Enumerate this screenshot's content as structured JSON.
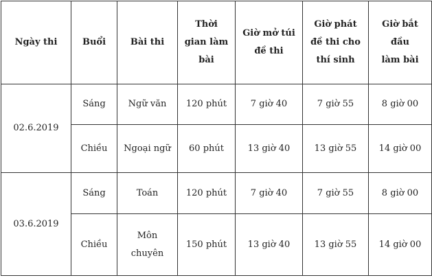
{
  "headers": [
    "Ngày thi",
    "Buổi",
    "Bài thi",
    "Thời gian làm bài",
    "Giờ mở túi đề thi",
    "Giờ phát đề thi cho thí sinh",
    "Giờ bắt đầu làm bài"
  ],
  "header_lines": {
    "h3": [
      "Thời",
      "gian làm",
      "bài"
    ],
    "h4": [
      "Giờ mở túi",
      "đề thi"
    ],
    "h5": [
      "Giờ phát",
      "đề thi cho",
      "thí sinh"
    ],
    "h6": [
      "Giờ bắt đầu",
      "làm bài"
    ]
  },
  "rows": [
    {
      "date": "02.6.2019",
      "sessions": [
        {
          "session": "Sáng",
          "subject": "Ngữ văn",
          "duration": "120 phút",
          "open": "7 giờ 40",
          "distribute": "7 giờ 55",
          "start": "8 giờ 00"
        },
        {
          "session": "Chiều",
          "subject": "Ngoại ngữ",
          "duration": "60 phút",
          "open": "13 giờ 40",
          "distribute": "13 giờ 55",
          "start": "14 giờ 00"
        }
      ]
    },
    {
      "date": "03.6.2019",
      "sessions": [
        {
          "session": "Sáng",
          "subject": "Toán",
          "duration": "120 phút",
          "open": "7 giờ 40",
          "distribute": "7 giờ 55",
          "start": "8 giờ 00"
        },
        {
          "session": "Chiều",
          "subject": "Môn chuyên",
          "subject_lines": [
            "Môn",
            "chuyên"
          ],
          "duration": "150 phút",
          "open": "13 giờ 40",
          "distribute": "13 giờ 55",
          "start": "14 giờ 00"
        }
      ]
    }
  ]
}
